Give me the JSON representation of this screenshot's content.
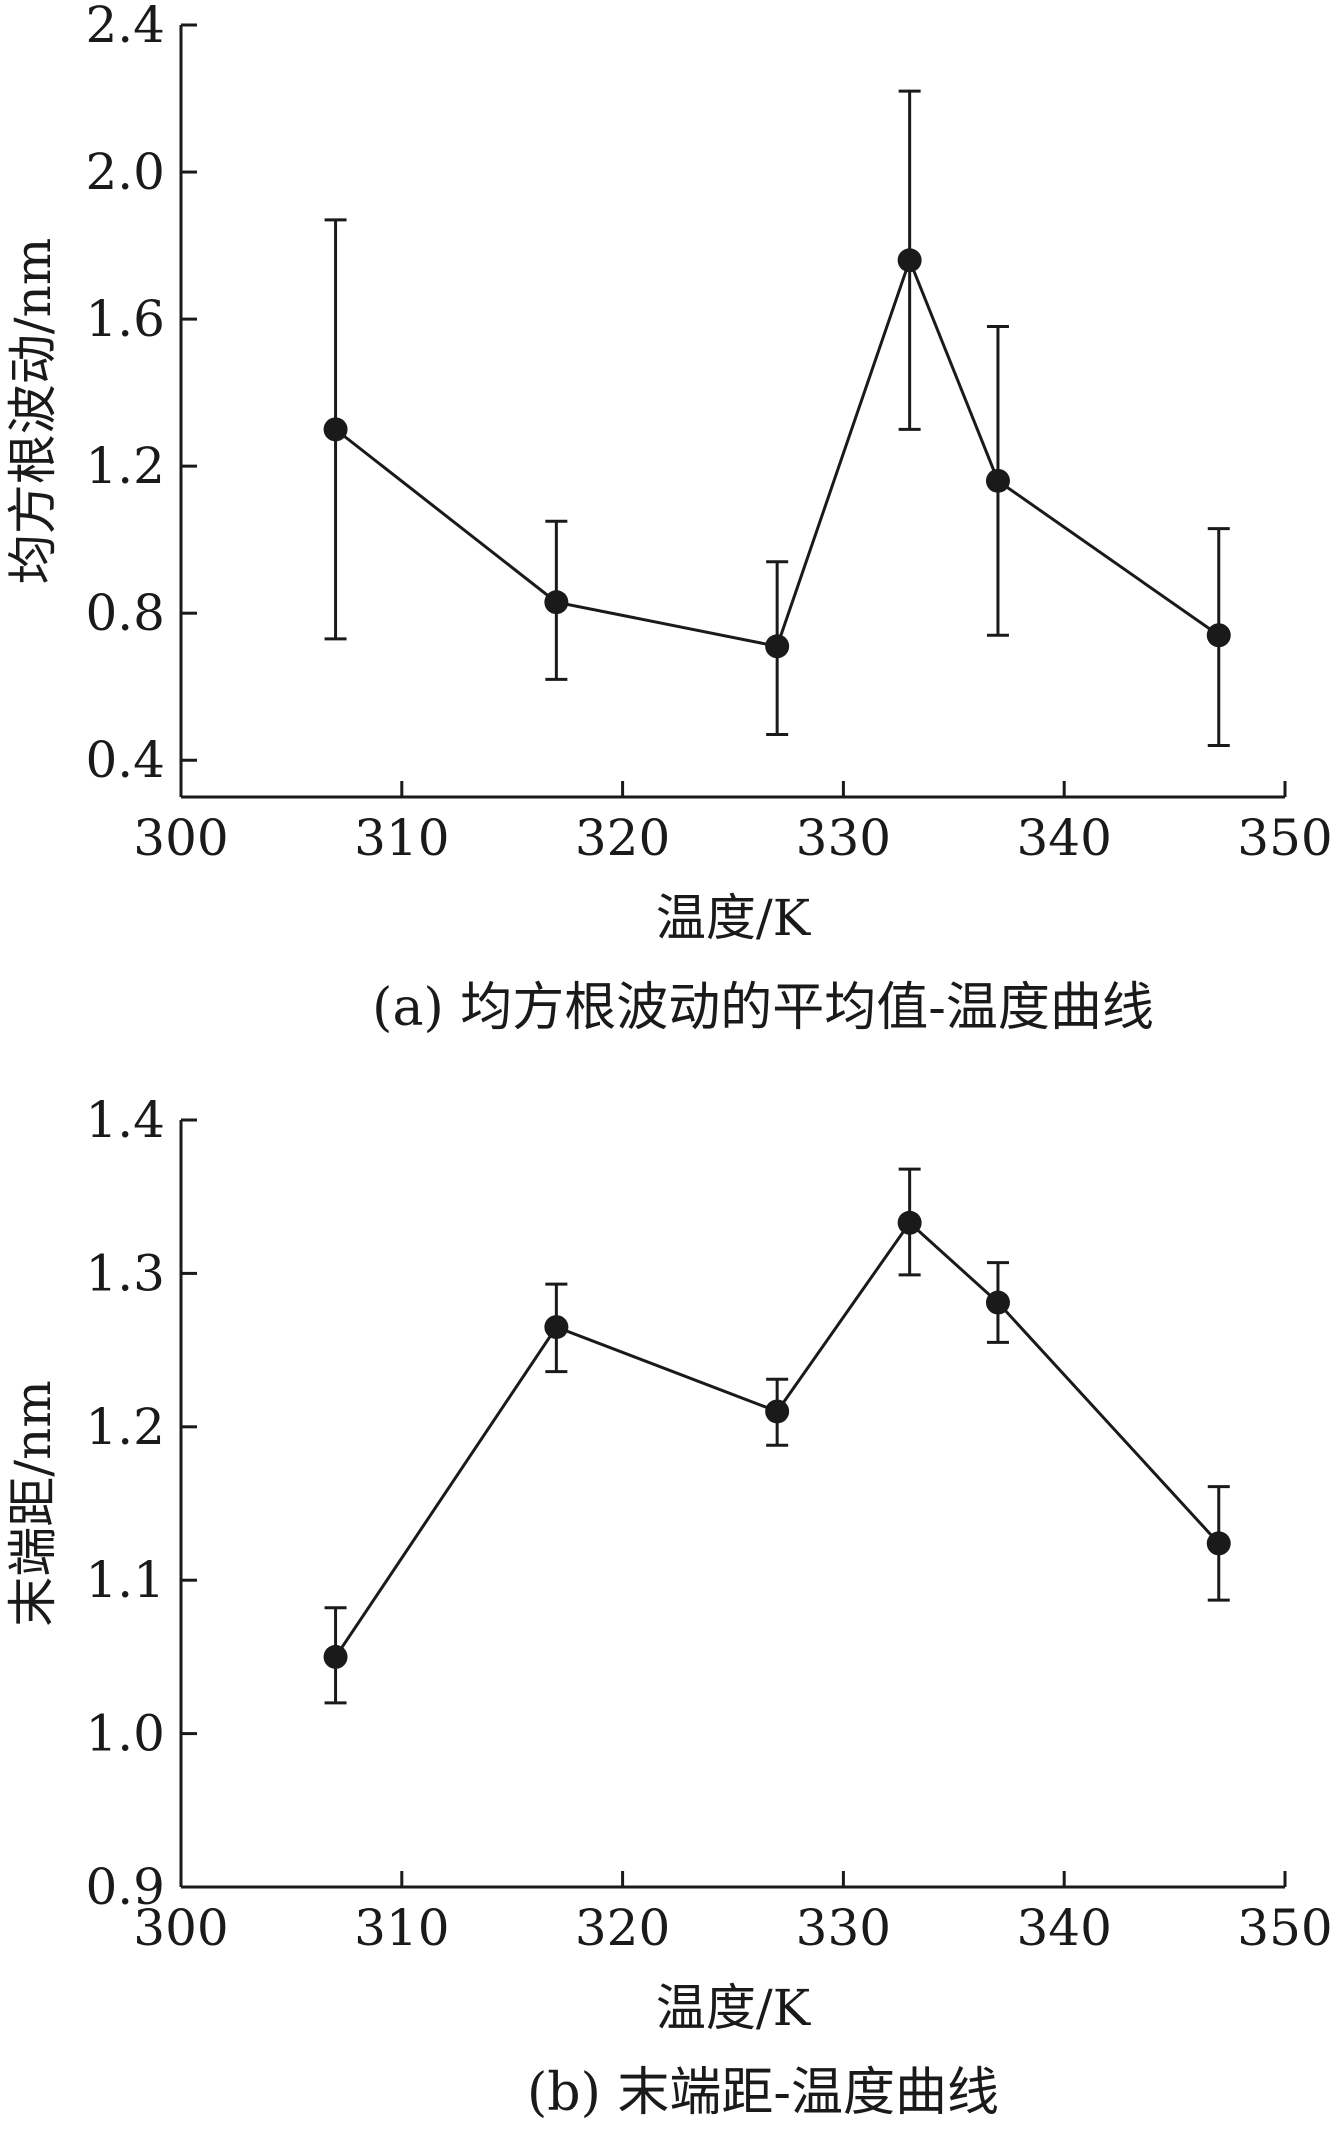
{
  "chart_data": [
    {
      "type": "line",
      "error_bars": true,
      "caption": "(a) 均方根波动的平均值-温度曲线",
      "xlabel": "温度/K",
      "ylabel": "均方根波动/nm",
      "xlim": [
        300,
        350
      ],
      "ylim": [
        0.3,
        2.4
      ],
      "x_ticks": [
        300,
        310,
        320,
        330,
        340,
        350
      ],
      "y_ticks": [
        0.4,
        0.8,
        1.2,
        1.6,
        2.0,
        2.4
      ],
      "y_tick_labels": [
        "0.4",
        "0.8",
        "1.2",
        "1.6",
        "2.0",
        "2.4"
      ],
      "grid": false,
      "series": [
        {
          "x": [
            307,
            317,
            327,
            333,
            337,
            347
          ],
          "y": [
            1.3,
            0.83,
            0.71,
            1.76,
            1.16,
            0.74
          ],
          "err_low": [
            0.73,
            0.62,
            0.47,
            1.3,
            0.74,
            0.44
          ],
          "err_high": [
            1.87,
            1.05,
            0.94,
            2.22,
            1.58,
            1.03
          ]
        }
      ],
      "color": "#1a1a1a"
    },
    {
      "type": "line",
      "error_bars": true,
      "caption": "(b) 末端距-温度曲线",
      "xlabel": "温度/K",
      "ylabel": "末端距/nm",
      "xlim": [
        300,
        350
      ],
      "ylim": [
        0.9,
        1.4
      ],
      "x_ticks": [
        300,
        310,
        320,
        330,
        340,
        350
      ],
      "y_ticks": [
        0.9,
        1.0,
        1.1,
        1.2,
        1.3,
        1.4
      ],
      "y_tick_labels": [
        "0.9",
        "1.0",
        "1.1",
        "1.2",
        "1.3",
        "1.4"
      ],
      "grid": false,
      "series": [
        {
          "x": [
            307,
            317,
            327,
            333,
            337,
            347
          ],
          "y": [
            1.05,
            1.265,
            1.21,
            1.333,
            1.281,
            1.124
          ],
          "err_low": [
            1.02,
            1.236,
            1.188,
            1.299,
            1.255,
            1.087
          ],
          "err_high": [
            1.082,
            1.293,
            1.231,
            1.368,
            1.307,
            1.161
          ]
        }
      ],
      "color": "#1a1a1a"
    }
  ]
}
